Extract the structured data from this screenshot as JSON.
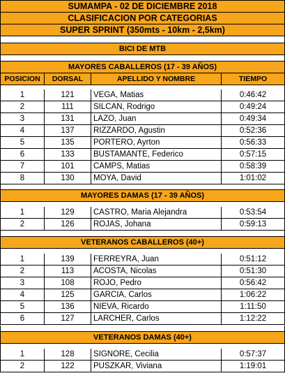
{
  "header": {
    "line1": "SUMAMPA - 02 DE DICIEMBRE 2018",
    "line2": "CLASIFICACION POR CATEGORIAS",
    "line3": "SUPER SPRINT (350mts - 10km - 2,5km)"
  },
  "discipline": "BICI DE MTB",
  "columns": {
    "posicion": "POSICION",
    "dorsal": "DORSAL",
    "nombre": "APELLIDO Y NOMBRE",
    "tiempo": "TIEMPO"
  },
  "categories": [
    {
      "title": "MAYORES CABALLEROS (17 - 39 AÑOS)",
      "rows": [
        {
          "pos": "1",
          "dorsal": "121",
          "name": "VEGA, Matias",
          "time": "0:46:42"
        },
        {
          "pos": "2",
          "dorsal": "111",
          "name": "SILCAN, Rodrigo",
          "time": "0:49:24"
        },
        {
          "pos": "3",
          "dorsal": "131",
          "name": "LAZO, Juan",
          "time": "0:49:34"
        },
        {
          "pos": "4",
          "dorsal": "137",
          "name": "RIZZARDO, Agustin",
          "time": "0:52:36"
        },
        {
          "pos": "5",
          "dorsal": "135",
          "name": "PORTERO, Ayrton",
          "time": "0:56:33"
        },
        {
          "pos": "6",
          "dorsal": "133",
          "name": "BUSTAMANTE, Federico",
          "time": "0:57:15"
        },
        {
          "pos": "7",
          "dorsal": "101",
          "name": "CAMPS, Matias",
          "time": "0:58:39"
        },
        {
          "pos": "8",
          "dorsal": "130",
          "name": "MOYA, David",
          "time": "1:01:02"
        }
      ]
    },
    {
      "title": "MAYORES DAMAS (17 - 39 AÑOS)",
      "rows": [
        {
          "pos": "1",
          "dorsal": "129",
          "name": "CASTRO, Maria Alejandra",
          "time": "0:53:54"
        },
        {
          "pos": "2",
          "dorsal": "126",
          "name": "ROJAS, Johana",
          "time": "0:59:13"
        }
      ]
    },
    {
      "title": "VETERANOS CABALLEROS (40+)",
      "rows": [
        {
          "pos": "1",
          "dorsal": "139",
          "name": "FERREYRA, Juan",
          "time": "0:51:12"
        },
        {
          "pos": "2",
          "dorsal": "113",
          "name": "ACOSTA, Nicolas",
          "time": "0:51:30"
        },
        {
          "pos": "3",
          "dorsal": "108",
          "name": "ROJO, Pedro",
          "time": "0:56:42"
        },
        {
          "pos": "4",
          "dorsal": "125",
          "name": "GARCIA, Carlos",
          "time": "1:06:22"
        },
        {
          "pos": "5",
          "dorsal": "136",
          "name": "NIEVA, Ricardo",
          "time": "1:11:50"
        },
        {
          "pos": "6",
          "dorsal": "127",
          "name": "LARCHER, Carlos",
          "time": "1:12:22"
        }
      ]
    },
    {
      "title": "VETERANOS DAMAS (40+)",
      "rows": [
        {
          "pos": "1",
          "dorsal": "128",
          "name": "SIGNORE, Cecilia",
          "time": "0:57:37"
        },
        {
          "pos": "2",
          "dorsal": "122",
          "name": "PUSZKAR, Viviana",
          "time": "1:19:01"
        }
      ]
    }
  ]
}
